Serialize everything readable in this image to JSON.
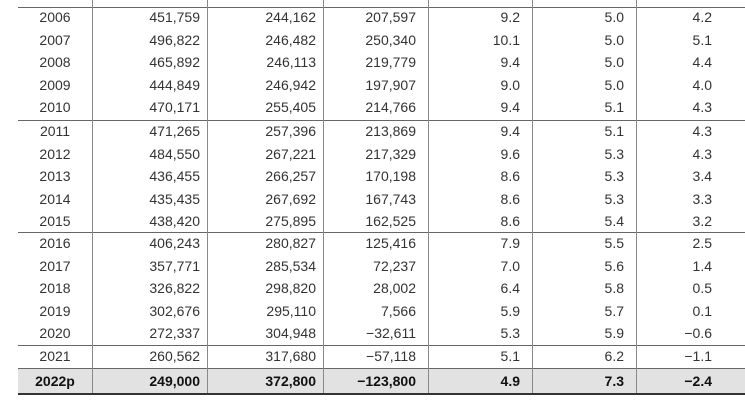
{
  "table": {
    "rows": [
      [
        "2006",
        "451,759",
        "244,162",
        "207,597",
        "9.2",
        "5.0",
        "4.2"
      ],
      [
        "2007",
        "496,822",
        "246,482",
        "250,340",
        "10.1",
        "5.0",
        "5.1"
      ],
      [
        "2008",
        "465,892",
        "246,113",
        "219,779",
        "9.4",
        "5.0",
        "4.4"
      ],
      [
        "2009",
        "444,849",
        "246,942",
        "197,907",
        "9.0",
        "5.0",
        "4.0"
      ],
      [
        "2010",
        "470,171",
        "255,405",
        "214,766",
        "9.4",
        "5.1",
        "4.3"
      ],
      [
        "2011",
        "471,265",
        "257,396",
        "213,869",
        "9.4",
        "5.1",
        "4.3"
      ],
      [
        "2012",
        "484,550",
        "267,221",
        "217,329",
        "9.6",
        "5.3",
        "4.3"
      ],
      [
        "2013",
        "436,455",
        "266,257",
        "170,198",
        "8.6",
        "5.3",
        "3.4"
      ],
      [
        "2014",
        "435,435",
        "267,692",
        "167,743",
        "8.6",
        "5.3",
        "3.3"
      ],
      [
        "2015",
        "438,420",
        "275,895",
        "162,525",
        "8.6",
        "5.4",
        "3.2"
      ],
      [
        "2016",
        "406,243",
        "280,827",
        "125,416",
        "7.9",
        "5.5",
        "2.5"
      ],
      [
        "2017",
        "357,771",
        "285,534",
        "72,237",
        "7.0",
        "5.6",
        "1.4"
      ],
      [
        "2018",
        "326,822",
        "298,820",
        "28,002",
        "6.4",
        "5.8",
        "0.5"
      ],
      [
        "2019",
        "302,676",
        "295,110",
        "7,566",
        "5.9",
        "5.7",
        "0.1"
      ],
      [
        "2020",
        "272,337",
        "304,948",
        "−32,611",
        "5.3",
        "5.9",
        "−0.6"
      ],
      [
        "2021",
        "260,562",
        "317,680",
        "−57,118",
        "5.1",
        "6.2",
        "−1.1"
      ],
      [
        "2022p",
        "249,000",
        "372,800",
        "−123,800",
        "4.9",
        "7.3",
        "−2.4"
      ]
    ]
  }
}
